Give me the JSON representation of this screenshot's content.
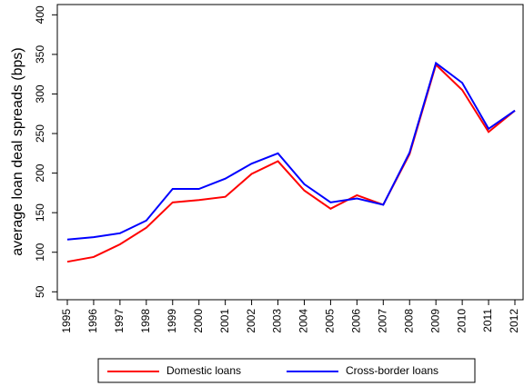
{
  "chart_data": {
    "type": "line",
    "y_label": "average loan deal spreads (bps)",
    "categories": [
      "1995",
      "1996",
      "1997",
      "1998",
      "1999",
      "2000",
      "2001",
      "2002",
      "2003",
      "2004",
      "2005",
      "2006",
      "2007",
      "2008",
      "2009",
      "2010",
      "2011",
      "2012"
    ],
    "series": [
      {
        "name": "Domestic loans",
        "color": "#ff0000",
        "values": [
          88,
          94,
          110,
          131,
          163,
          166,
          170,
          199,
          215,
          178,
          155,
          172,
          160,
          224,
          337,
          305,
          252,
          279
        ]
      },
      {
        "name": "Cross-border loans",
        "color": "#0000ff",
        "values": [
          116,
          119,
          124,
          140,
          180,
          180,
          193,
          212,
          225,
          186,
          163,
          168,
          160,
          226,
          339,
          314,
          256,
          279
        ]
      }
    ],
    "ylim": [
      40,
      413
    ],
    "yticks": [
      50,
      100,
      150,
      200,
      250,
      300,
      350,
      400
    ]
  }
}
